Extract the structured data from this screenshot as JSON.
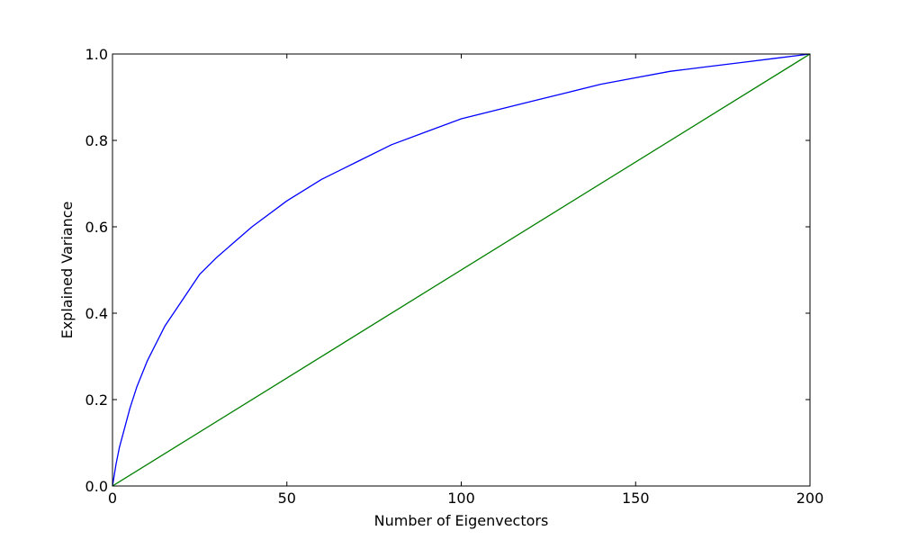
{
  "chart_data": {
    "type": "line",
    "title": "",
    "xlabel": "Number of Eigenvectors",
    "ylabel": "Explained Variance",
    "xlim": [
      0,
      200
    ],
    "ylim": [
      0.0,
      1.0
    ],
    "x_ticks": [
      0,
      50,
      100,
      150,
      200
    ],
    "x_tick_labels": [
      "0",
      "50",
      "100",
      "150",
      "200"
    ],
    "y_ticks": [
      0.0,
      0.2,
      0.4,
      0.6,
      0.8,
      1.0
    ],
    "y_tick_labels": [
      "0.0",
      "0.2",
      "0.4",
      "0.6",
      "0.8",
      "1.0"
    ],
    "grid": false,
    "legend": "none",
    "series": [
      {
        "color": "#0000ff",
        "x": [
          0,
          1,
          2,
          3,
          5,
          7,
          10,
          15,
          20,
          25,
          30,
          40,
          50,
          60,
          70,
          80,
          90,
          100,
          110,
          120,
          130,
          140,
          150,
          160,
          170,
          180,
          190,
          200
        ],
        "y": [
          0.0,
          0.05,
          0.09,
          0.12,
          0.18,
          0.23,
          0.29,
          0.37,
          0.43,
          0.49,
          0.53,
          0.6,
          0.66,
          0.71,
          0.75,
          0.79,
          0.82,
          0.85,
          0.87,
          0.89,
          0.91,
          0.93,
          0.945,
          0.96,
          0.97,
          0.98,
          0.99,
          1.0
        ]
      },
      {
        "color": "#008000",
        "x": [
          0,
          200
        ],
        "y": [
          0.0,
          1.0
        ]
      }
    ]
  }
}
